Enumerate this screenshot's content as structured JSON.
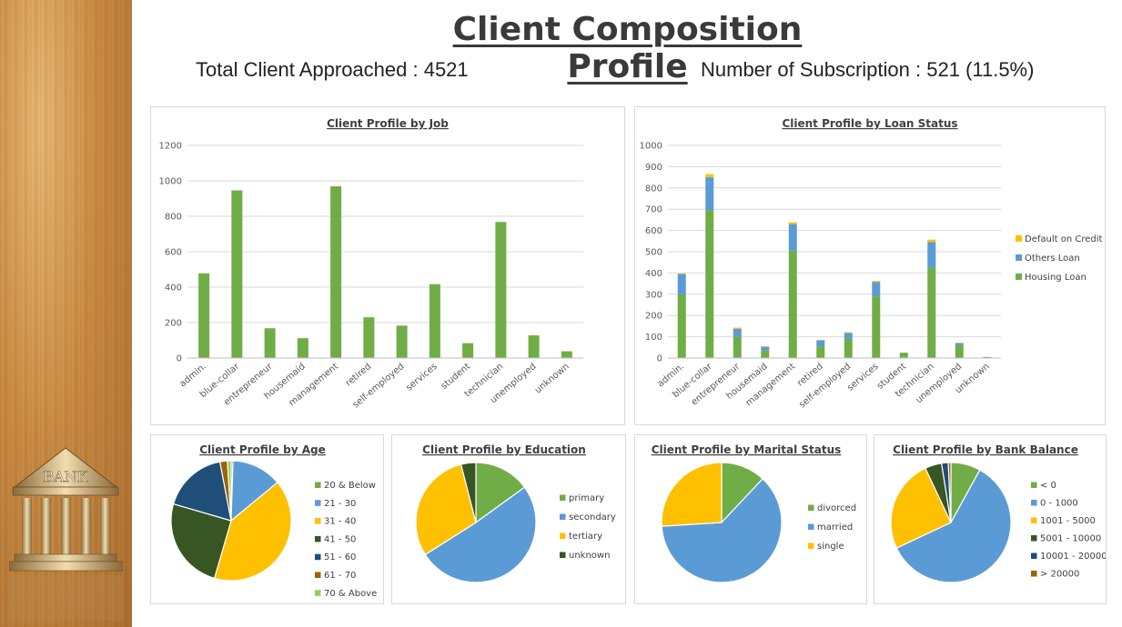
{
  "page": {
    "title": "Client Composition Profile",
    "total_label": "Total Client Approached : 4521",
    "subscription_label": "Number of Subscription : 521  (11.5%)",
    "logo_text": "BANK"
  },
  "chart_data": [
    {
      "id": "job",
      "type": "bar",
      "title": "Client Profile by Job",
      "categories": [
        "admin.",
        "blue-collar",
        "entrepreneur",
        "housemaid",
        "management",
        "retired",
        "self-employed",
        "services",
        "student",
        "technician",
        "unemployed",
        "unknown"
      ],
      "values": [
        478,
        946,
        168,
        112,
        969,
        230,
        183,
        417,
        84,
        768,
        128,
        38
      ],
      "ylim": [
        0,
        1200
      ],
      "yticks": [
        0,
        200,
        400,
        600,
        800,
        1000,
        1200
      ],
      "color": "#70ad47",
      "grid": true
    },
    {
      "id": "loan",
      "type": "bar",
      "stacked": true,
      "title": "Client Profile by Loan Status",
      "categories": [
        "admin.",
        "blue-collar",
        "entrepreneur",
        "housemaid",
        "management",
        "retired",
        "self-employed",
        "services",
        "student",
        "technician",
        "unemployed",
        "unknown"
      ],
      "series": [
        {
          "name": "Housing Loan",
          "color": "#70ad47",
          "values": [
            300,
            695,
            100,
            35,
            505,
            55,
            90,
            290,
            25,
            425,
            60,
            0
          ]
        },
        {
          "name": "Others Loan",
          "color": "#5b9bd5",
          "values": [
            95,
            155,
            38,
            18,
            125,
            28,
            28,
            68,
            0,
            120,
            10,
            5
          ]
        },
        {
          "name": "Default on Credit",
          "color": "#ffc000",
          "values": [
            3,
            15,
            5,
            2,
            8,
            2,
            3,
            5,
            0,
            12,
            2,
            0
          ]
        }
      ],
      "ylim": [
        0,
        1000
      ],
      "yticks": [
        0,
        100,
        200,
        300,
        400,
        500,
        600,
        700,
        800,
        900,
        1000
      ],
      "legend": "right",
      "grid": true
    },
    {
      "id": "age",
      "type": "pie",
      "title": "Client Profile by Age",
      "labels": [
        "20 & Below",
        "21 - 30",
        "31 - 40",
        "41 - 50",
        "51 - 60",
        "61 - 70",
        "70 & Above"
      ],
      "values": [
        0.5,
        13.5,
        40.5,
        25,
        17.5,
        2,
        1
      ],
      "colors": [
        "#70ad47",
        "#5b9bd5",
        "#ffc000",
        "#375623",
        "#1f4e79",
        "#9e6200",
        "#92d050"
      ],
      "legend": "right"
    },
    {
      "id": "education",
      "type": "pie",
      "title": "Client Profile by Education",
      "labels": [
        "primary",
        "secondary",
        "tertiary",
        "unknown"
      ],
      "values": [
        15,
        51,
        30,
        4
      ],
      "colors": [
        "#70ad47",
        "#5b9bd5",
        "#ffc000",
        "#375623"
      ],
      "legend": "right"
    },
    {
      "id": "marital",
      "type": "pie",
      "title": "Client Profile by Marital Status",
      "labels": [
        "divorced",
        "married",
        "single"
      ],
      "values": [
        12,
        62,
        26
      ],
      "colors": [
        "#70ad47",
        "#5b9bd5",
        "#ffc000"
      ],
      "legend": "right"
    },
    {
      "id": "balance",
      "type": "pie",
      "title": "Client Profile by Bank Balance",
      "labels": [
        "< 0",
        "0 - 1000",
        "1001 - 5000",
        "5001 - 10000",
        "10001 - 20000",
        "> 20000"
      ],
      "values": [
        8,
        60,
        25,
        4.5,
        1.8,
        0.7
      ],
      "colors": [
        "#70ad47",
        "#5b9bd5",
        "#ffc000",
        "#375623",
        "#1f4e79",
        "#9e6200"
      ],
      "legend": "right"
    }
  ]
}
